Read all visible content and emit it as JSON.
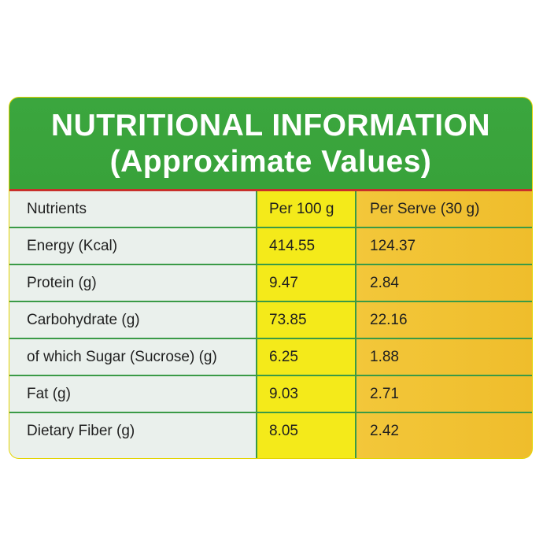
{
  "header": {
    "title": "NUTRITIONAL INFORMATION",
    "subtitle": "(Approximate Values)"
  },
  "table": {
    "columns": [
      "Nutrients",
      "Per 100 g",
      "Per Serve (30 g)"
    ],
    "rows": [
      {
        "nutrient": "Energy (Kcal)",
        "per100g": "414.55",
        "perServe": "124.37"
      },
      {
        "nutrient": "Protein (g)",
        "per100g": "9.47",
        "perServe": "2.84"
      },
      {
        "nutrient": "Carbohydrate (g)",
        "per100g": "73.85",
        "perServe": "22.16"
      },
      {
        "nutrient": "of which Sugar (Sucrose) (g)",
        "per100g": "6.25",
        "perServe": "1.88"
      },
      {
        "nutrient": "Fat (g)",
        "per100g": "9.03",
        "perServe": "2.71"
      },
      {
        "nutrient": "Dietary Fiber (g)",
        "per100g": "8.05",
        "perServe": "2.42"
      }
    ]
  },
  "colors": {
    "header_green": "#3ba63e",
    "accent_red": "#c8302b",
    "col1_bg": "#eaf0ec",
    "col2_bg": "#f4ea1a",
    "col3_bg": "#f3c73a",
    "rule_green": "#3a9a46"
  }
}
